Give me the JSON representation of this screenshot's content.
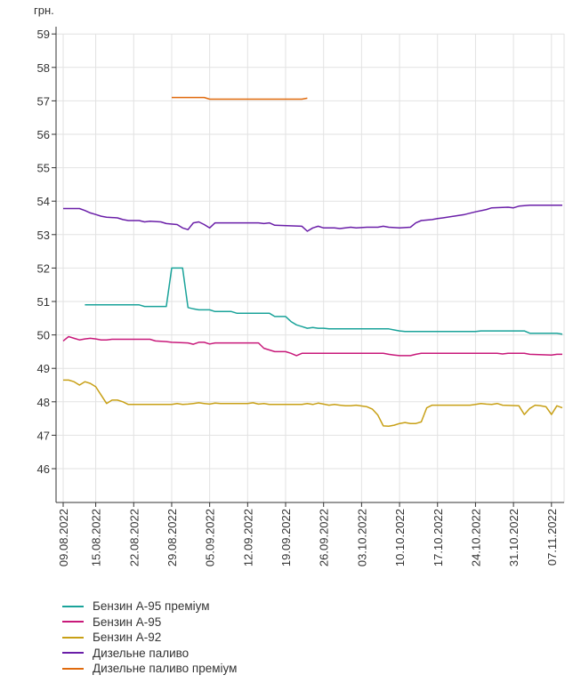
{
  "chart_data": {
    "type": "line",
    "ylabel": "грн.",
    "ylim": [
      45,
      59
    ],
    "y_ticks": [
      "46",
      "47",
      "48",
      "49",
      "50",
      "51",
      "52",
      "53",
      "54",
      "55",
      "56",
      "57",
      "58",
      "59"
    ],
    "grid": true,
    "start_date": "09.08.2022",
    "num_days": 93,
    "x_tick_labels": [
      "09.08.2022",
      "15.08.2022",
      "22.08.2022",
      "29.08.2022",
      "05.09.2022",
      "12.09.2022",
      "19.09.2022",
      "26.09.2022",
      "03.10.2022",
      "10.10.2022",
      "17.10.2022",
      "24.10.2022",
      "31.10.2022",
      "07.11.2022"
    ],
    "x_tick_days": [
      0,
      6,
      13,
      20,
      27,
      34,
      41,
      48,
      55,
      62,
      69,
      76,
      83,
      90
    ],
    "legend_position": "bottom",
    "series": [
      {
        "name": "Бензин А-95 преміум",
        "color": "#1aa39a",
        "points": [
          [
            4,
            50.9
          ],
          [
            14,
            50.9
          ],
          [
            15,
            50.85
          ],
          [
            19,
            50.85
          ],
          [
            20,
            52.0
          ],
          [
            22,
            52.0
          ],
          [
            23,
            50.82
          ],
          [
            24,
            50.78
          ],
          [
            25,
            50.75
          ],
          [
            27,
            50.75
          ],
          [
            28,
            50.7
          ],
          [
            31,
            50.7
          ],
          [
            32,
            50.65
          ],
          [
            38,
            50.65
          ],
          [
            39,
            50.55
          ],
          [
            41,
            50.55
          ],
          [
            42,
            50.4
          ],
          [
            43,
            50.3
          ],
          [
            44,
            50.25
          ],
          [
            45,
            50.2
          ],
          [
            46,
            50.22
          ],
          [
            47,
            50.2
          ],
          [
            48,
            50.2
          ],
          [
            49,
            50.18
          ],
          [
            60,
            50.18
          ],
          [
            61,
            50.15
          ],
          [
            62,
            50.12
          ],
          [
            63,
            50.1
          ],
          [
            76,
            50.1
          ],
          [
            77,
            50.12
          ],
          [
            85,
            50.12
          ],
          [
            86,
            50.05
          ],
          [
            91,
            50.05
          ],
          [
            92,
            50.02
          ]
        ]
      },
      {
        "name": "Бензин А-95",
        "color": "#c8197a",
        "points": [
          [
            0,
            49.82
          ],
          [
            1,
            49.95
          ],
          [
            2,
            49.9
          ],
          [
            3,
            49.85
          ],
          [
            4,
            49.88
          ],
          [
            5,
            49.9
          ],
          [
            6,
            49.88
          ],
          [
            7,
            49.85
          ],
          [
            8,
            49.85
          ],
          [
            9,
            49.87
          ],
          [
            16,
            49.87
          ],
          [
            17,
            49.82
          ],
          [
            19,
            49.8
          ],
          [
            20,
            49.78
          ],
          [
            23,
            49.76
          ],
          [
            24,
            49.72
          ],
          [
            25,
            49.78
          ],
          [
            26,
            49.78
          ],
          [
            27,
            49.73
          ],
          [
            28,
            49.76
          ],
          [
            36,
            49.76
          ],
          [
            37,
            49.6
          ],
          [
            38,
            49.55
          ],
          [
            39,
            49.5
          ],
          [
            41,
            49.5
          ],
          [
            42,
            49.45
          ],
          [
            43,
            49.38
          ],
          [
            44,
            49.45
          ],
          [
            59,
            49.45
          ],
          [
            60,
            49.42
          ],
          [
            61,
            49.4
          ],
          [
            62,
            49.38
          ],
          [
            64,
            49.38
          ],
          [
            65,
            49.42
          ],
          [
            66,
            49.45
          ],
          [
            80,
            49.45
          ],
          [
            81,
            49.43
          ],
          [
            82,
            49.45
          ],
          [
            85,
            49.45
          ],
          [
            86,
            49.42
          ],
          [
            90,
            49.4
          ],
          [
            91,
            49.42
          ],
          [
            92,
            49.42
          ]
        ]
      },
      {
        "name": "Бензин А-92",
        "color": "#c8a016",
        "points": [
          [
            0,
            48.65
          ],
          [
            1,
            48.65
          ],
          [
            2,
            48.6
          ],
          [
            3,
            48.5
          ],
          [
            4,
            48.6
          ],
          [
            5,
            48.55
          ],
          [
            6,
            48.45
          ],
          [
            7,
            48.2
          ],
          [
            8,
            47.95
          ],
          [
            9,
            48.05
          ],
          [
            10,
            48.05
          ],
          [
            11,
            48.0
          ],
          [
            12,
            47.92
          ],
          [
            20,
            47.92
          ],
          [
            21,
            47.95
          ],
          [
            22,
            47.92
          ],
          [
            23,
            47.93
          ],
          [
            24,
            47.95
          ],
          [
            25,
            47.97
          ],
          [
            26,
            47.95
          ],
          [
            27,
            47.93
          ],
          [
            28,
            47.96
          ],
          [
            29,
            47.95
          ],
          [
            34,
            47.95
          ],
          [
            35,
            47.97
          ],
          [
            36,
            47.93
          ],
          [
            37,
            47.95
          ],
          [
            38,
            47.92
          ],
          [
            44,
            47.92
          ],
          [
            45,
            47.95
          ],
          [
            46,
            47.92
          ],
          [
            47,
            47.96
          ],
          [
            48,
            47.93
          ],
          [
            49,
            47.9
          ],
          [
            50,
            47.92
          ],
          [
            51,
            47.9
          ],
          [
            52,
            47.88
          ],
          [
            53,
            47.88
          ],
          [
            54,
            47.9
          ],
          [
            56,
            47.85
          ],
          [
            57,
            47.78
          ],
          [
            58,
            47.6
          ],
          [
            59,
            47.28
          ],
          [
            60,
            47.27
          ],
          [
            61,
            47.3
          ],
          [
            62,
            47.35
          ],
          [
            63,
            47.38
          ],
          [
            64,
            47.35
          ],
          [
            65,
            47.35
          ],
          [
            66,
            47.4
          ],
          [
            67,
            47.82
          ],
          [
            68,
            47.9
          ],
          [
            75,
            47.9
          ],
          [
            76,
            47.92
          ],
          [
            77,
            47.95
          ],
          [
            78,
            47.93
          ],
          [
            79,
            47.92
          ],
          [
            80,
            47.95
          ],
          [
            81,
            47.9
          ],
          [
            84,
            47.88
          ],
          [
            85,
            47.62
          ],
          [
            86,
            47.8
          ],
          [
            87,
            47.9
          ],
          [
            88,
            47.88
          ],
          [
            89,
            47.85
          ],
          [
            90,
            47.62
          ],
          [
            91,
            47.88
          ],
          [
            92,
            47.82
          ]
        ]
      },
      {
        "name": "Дизельне паливо",
        "color": "#6a1ea8",
        "points": [
          [
            0,
            53.78
          ],
          [
            3,
            53.78
          ],
          [
            4,
            53.72
          ],
          [
            5,
            53.65
          ],
          [
            6,
            53.6
          ],
          [
            7,
            53.55
          ],
          [
            8,
            53.52
          ],
          [
            10,
            53.5
          ],
          [
            11,
            53.45
          ],
          [
            12,
            53.42
          ],
          [
            14,
            53.42
          ],
          [
            15,
            53.38
          ],
          [
            16,
            53.4
          ],
          [
            18,
            53.38
          ],
          [
            19,
            53.33
          ],
          [
            21,
            53.3
          ],
          [
            22,
            53.2
          ],
          [
            23,
            53.15
          ],
          [
            24,
            53.35
          ],
          [
            25,
            53.38
          ],
          [
            26,
            53.3
          ],
          [
            27,
            53.2
          ],
          [
            28,
            53.35
          ],
          [
            36,
            53.35
          ],
          [
            37,
            53.33
          ],
          [
            38,
            53.35
          ],
          [
            39,
            53.28
          ],
          [
            44,
            53.25
          ],
          [
            45,
            53.1
          ],
          [
            46,
            53.2
          ],
          [
            47,
            53.25
          ],
          [
            48,
            53.2
          ],
          [
            50,
            53.2
          ],
          [
            51,
            53.18
          ],
          [
            53,
            53.22
          ],
          [
            54,
            53.2
          ],
          [
            56,
            53.22
          ],
          [
            58,
            53.22
          ],
          [
            59,
            53.25
          ],
          [
            60,
            53.22
          ],
          [
            62,
            53.2
          ],
          [
            64,
            53.22
          ],
          [
            65,
            53.35
          ],
          [
            66,
            53.42
          ],
          [
            68,
            53.45
          ],
          [
            69,
            53.48
          ],
          [
            70,
            53.5
          ],
          [
            72,
            53.55
          ],
          [
            74,
            53.6
          ],
          [
            76,
            53.68
          ],
          [
            78,
            53.75
          ],
          [
            79,
            53.8
          ],
          [
            82,
            53.82
          ],
          [
            83,
            53.8
          ],
          [
            84,
            53.85
          ],
          [
            86,
            53.88
          ],
          [
            92,
            53.88
          ]
        ]
      },
      {
        "name": "Дизельне паливо преміум",
        "color": "#e06a0d",
        "points": [
          [
            20,
            57.1
          ],
          [
            26,
            57.1
          ],
          [
            27,
            57.05
          ],
          [
            44,
            57.05
          ],
          [
            45,
            57.08
          ]
        ]
      }
    ]
  }
}
